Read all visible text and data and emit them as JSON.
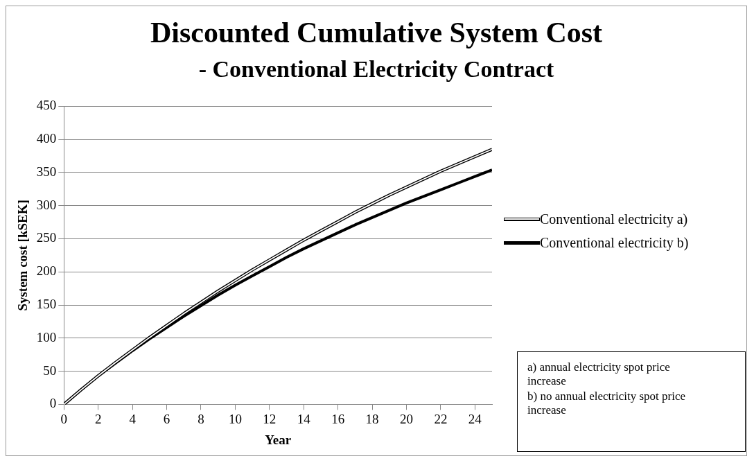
{
  "chart_data": {
    "type": "line",
    "title": [
      "Discounted Cumulative System Cost",
      "- Conventional Electricity Contract"
    ],
    "xlabel": "Year",
    "ylabel": "System cost [kSEK]",
    "x": [
      0,
      1,
      2,
      3,
      4,
      5,
      6,
      7,
      8,
      9,
      10,
      11,
      12,
      13,
      14,
      15,
      16,
      17,
      18,
      19,
      20,
      21,
      22,
      23,
      24,
      25
    ],
    "series": [
      {
        "name": "Conventional electricity a)",
        "color": "#000000",
        "values": [
          0,
          22,
          43,
          63,
          82,
          101,
          119,
          137,
          154,
          171,
          187,
          203,
          218,
          233,
          248,
          262,
          276,
          290,
          303,
          316,
          328,
          340,
          352,
          363,
          374,
          385
        ]
      },
      {
        "name": "Conventional electricity b)",
        "color": "#000000",
        "values": [
          0,
          22,
          43,
          62,
          81,
          99,
          116,
          133,
          149,
          165,
          180,
          194,
          208,
          222,
          235,
          247,
          259,
          271,
          282,
          293,
          304,
          314,
          324,
          334,
          344,
          354
        ]
      }
    ],
    "xlim": [
      0,
      25
    ],
    "xticks": [
      0,
      2,
      4,
      6,
      8,
      10,
      12,
      14,
      16,
      18,
      20,
      22,
      24
    ],
    "ylim": [
      0,
      450
    ],
    "yticks": [
      0,
      50,
      100,
      150,
      200,
      250,
      300,
      350,
      400,
      450
    ],
    "grid": "y",
    "legend": "right",
    "marker": "none",
    "line_style": "solid",
    "annotations": [
      "a)  annual electricity spot price increase",
      "b)  no annual electricity spot price increase"
    ]
  }
}
